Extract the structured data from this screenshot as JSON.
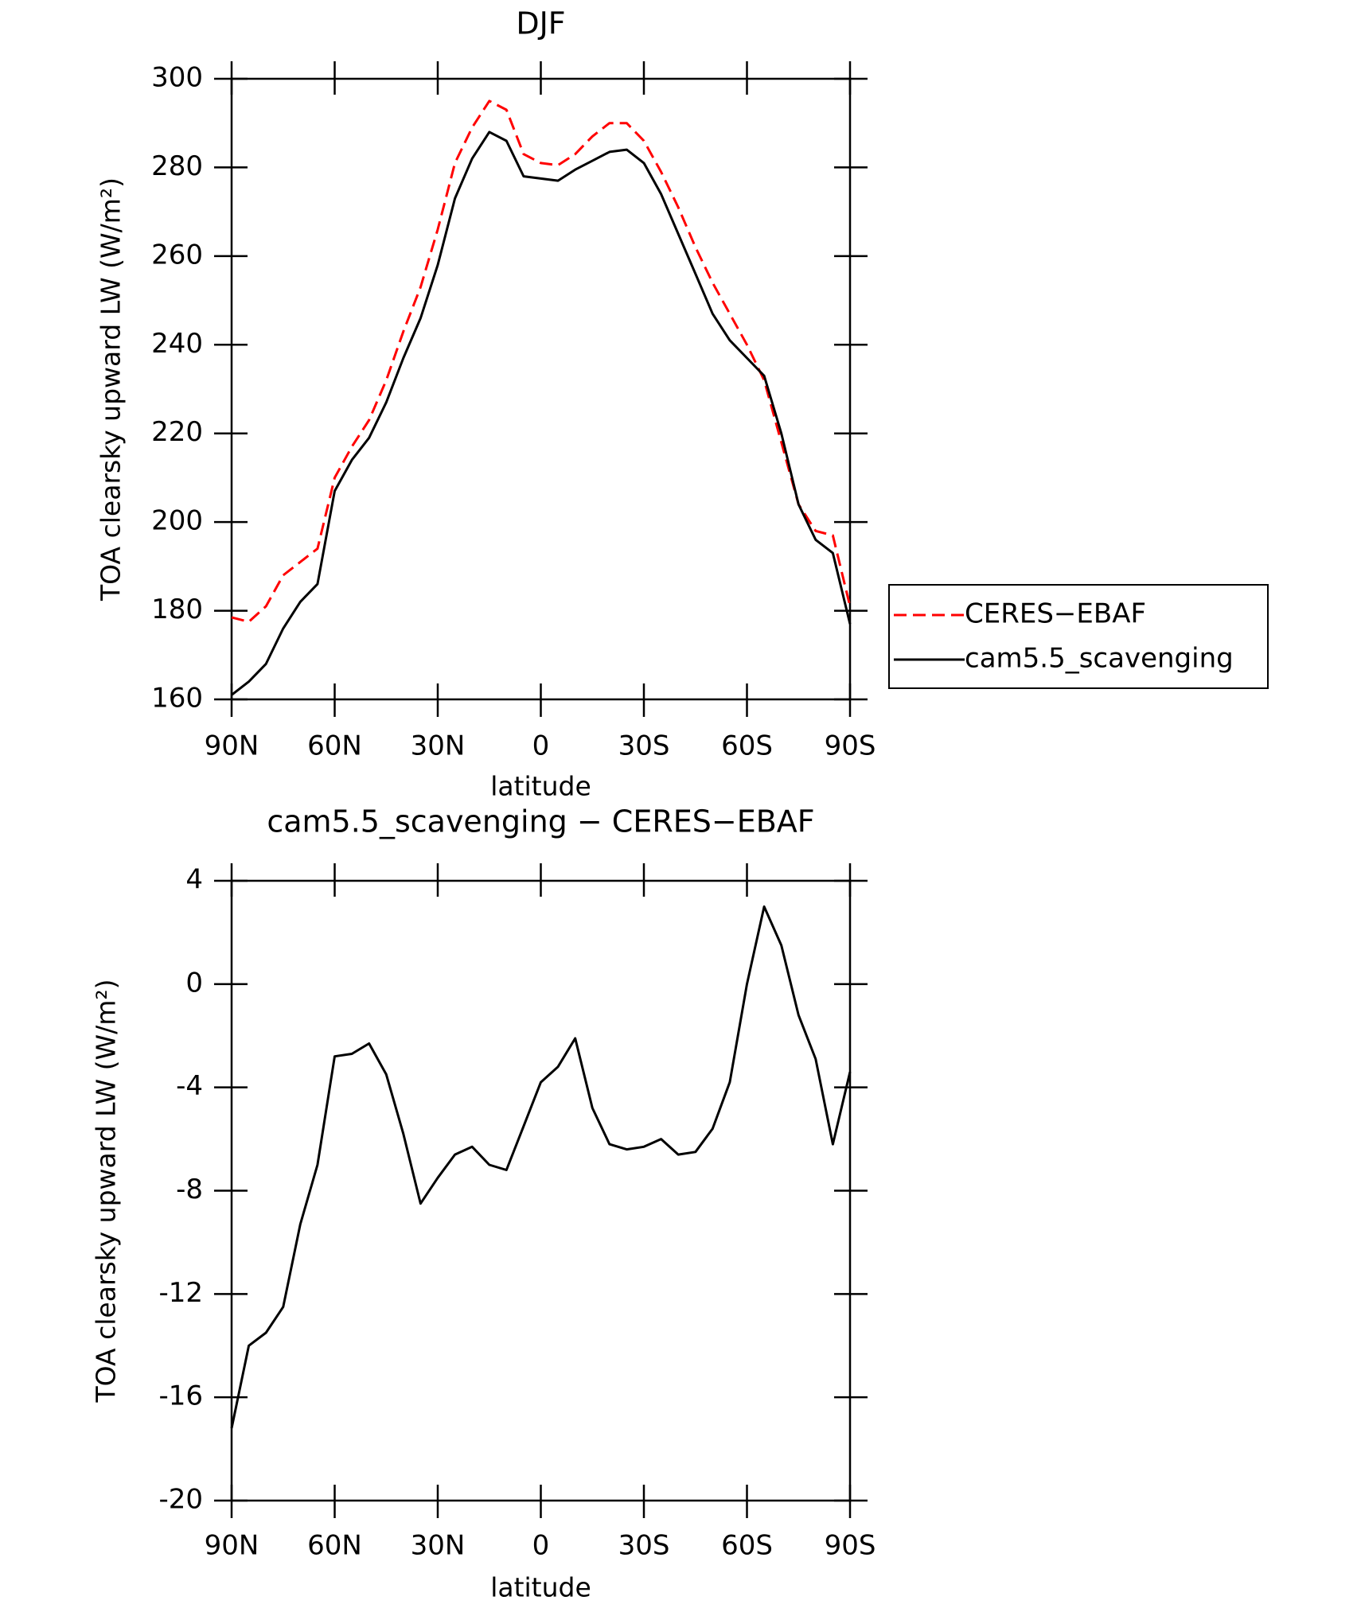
{
  "chart_data": [
    {
      "type": "line",
      "title": "DJF",
      "x_label": "latitude",
      "y_label": "TOA clearsky upward LW (W/m²)",
      "x": [
        90,
        85,
        80,
        75,
        70,
        65,
        60,
        55,
        50,
        45,
        40,
        35,
        30,
        25,
        20,
        15,
        10,
        5,
        0,
        -5,
        -10,
        -15,
        -20,
        -25,
        -30,
        -35,
        -40,
        -45,
        -50,
        -55,
        -60,
        -65,
        -70,
        -75,
        -80,
        -85,
        -90
      ],
      "series": [
        {
          "name": "CERES−EBAF",
          "color": "#ff0000",
          "style": "dashed",
          "values": [
            178.5,
            177.5,
            181,
            188,
            191,
            194,
            210,
            217,
            223,
            232,
            243,
            253,
            266,
            281,
            289,
            295,
            293,
            283,
            281,
            280.5,
            283,
            287,
            290,
            290,
            286,
            279,
            271,
            262,
            254,
            247,
            240,
            232,
            218,
            204,
            198,
            197,
            181
          ]
        },
        {
          "name": "cam5.5_scavenging",
          "color": "#000000",
          "style": "solid",
          "values": [
            161,
            164,
            168,
            176,
            182,
            186,
            207,
            214,
            219,
            227,
            237,
            246,
            258,
            273,
            282,
            288,
            286,
            278,
            277.5,
            277,
            279.5,
            281.5,
            283.5,
            284,
            281,
            274,
            265,
            256,
            247,
            241,
            237,
            233,
            220,
            204,
            196,
            193,
            177
          ]
        }
      ],
      "xlim": [
        90,
        -90
      ],
      "xticks": [
        {
          "value": 90,
          "label": "90N"
        },
        {
          "value": 60,
          "label": "60N"
        },
        {
          "value": 30,
          "label": "30N"
        },
        0,
        {
          "value": -30,
          "label": "30S"
        },
        {
          "value": -60,
          "label": "60S"
        },
        {
          "value": -90,
          "label": "90S"
        }
      ],
      "ylim": [
        160,
        300
      ],
      "yticks": [
        160,
        180,
        200,
        220,
        240,
        260,
        280,
        300
      ],
      "legend": "right"
    },
    {
      "type": "line",
      "title": "cam5.5_scavenging − CERES−EBAF",
      "x_label": "latitude",
      "y_label": "TOA clearsky upward LW (W/m²)",
      "x": [
        90,
        85,
        80,
        75,
        70,
        65,
        60,
        55,
        50,
        45,
        40,
        35,
        30,
        25,
        20,
        15,
        10,
        5,
        0,
        -5,
        -10,
        -15,
        -20,
        -25,
        -30,
        -35,
        -40,
        -45,
        -50,
        -55,
        -60,
        -65,
        -70,
        -75,
        -80,
        -85,
        -90
      ],
      "values": [
        -17.2,
        -14,
        -13.5,
        -12.5,
        -9.3,
        -7,
        -2.8,
        -2.7,
        -2.3,
        -3.5,
        -5.8,
        -8.5,
        -7.5,
        -6.6,
        -6.3,
        -7,
        -7.2,
        -5.5,
        -3.8,
        -3.2,
        -2.1,
        -4.8,
        -6.2,
        -6.4,
        -6.3,
        -6,
        -6.6,
        -6.5,
        -5.6,
        -3.8,
        0,
        3,
        1.5,
        -1.2,
        -2.9,
        -6.2,
        -3.4
      ],
      "color": "#000000",
      "xlim": [
        90,
        -90
      ],
      "xticks": [
        {
          "value": 90,
          "label": "90N"
        },
        {
          "value": 60,
          "label": "60N"
        },
        {
          "value": 30,
          "label": "30N"
        },
        0,
        {
          "value": -30,
          "label": "30S"
        },
        {
          "value": -60,
          "label": "60S"
        },
        {
          "value": -90,
          "label": "90S"
        }
      ],
      "ylim": [
        -20,
        4
      ],
      "yticks": [
        -20,
        -16,
        -12,
        -8,
        -4,
        0,
        4
      ]
    }
  ]
}
